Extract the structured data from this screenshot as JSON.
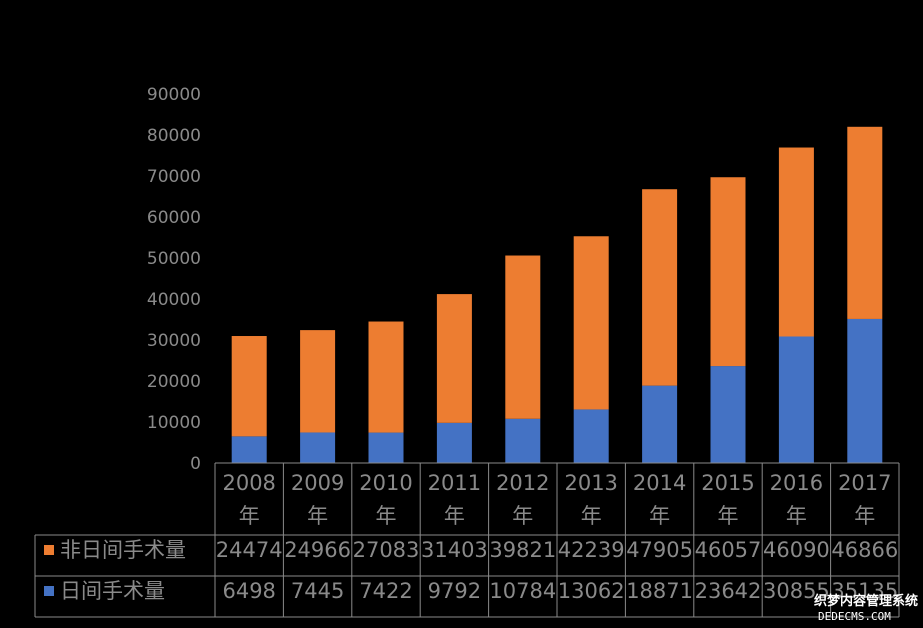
{
  "chart_data": {
    "type": "bar",
    "stacked": true,
    "categories": [
      "2008年",
      "2009年",
      "2010年",
      "2011年",
      "2012年",
      "2013年",
      "2014年",
      "2015年",
      "2016年",
      "2017年"
    ],
    "series": [
      {
        "name": "日间手术量",
        "color": "#4472C4",
        "values": [
          6498,
          7445,
          7422,
          9792,
          10784,
          13062,
          18871,
          23642,
          30855,
          35135
        ]
      },
      {
        "name": "非日间手术量",
        "color": "#ED7D31",
        "values": [
          24474,
          24966,
          27083,
          31403,
          39821,
          42239,
          47905,
          46057,
          46090,
          46866
        ]
      }
    ],
    "table_row_labels": [
      "非日间手术量",
      "日间手术量"
    ],
    "table_rows": [
      [
        "24474",
        "24966",
        "27083",
        "31403",
        "39821",
        "42239",
        "47905",
        "46057",
        "46090",
        "46866"
      ],
      [
        "6498",
        "7445",
        "7422",
        "9792",
        "10784",
        "13062",
        "18871",
        "23642",
        "30855",
        "35135"
      ]
    ],
    "yticks": [
      "0",
      "10000",
      "20000",
      "30000",
      "40000",
      "50000",
      "60000",
      "70000",
      "80000",
      "90000"
    ],
    "ylim": [
      0,
      90000
    ],
    "legend_in_table": true,
    "title": "",
    "xlabel": "",
    "ylabel": ""
  },
  "watermark": {
    "line1": "织梦内容管理系统",
    "line2": "DEDECMS.COM"
  }
}
